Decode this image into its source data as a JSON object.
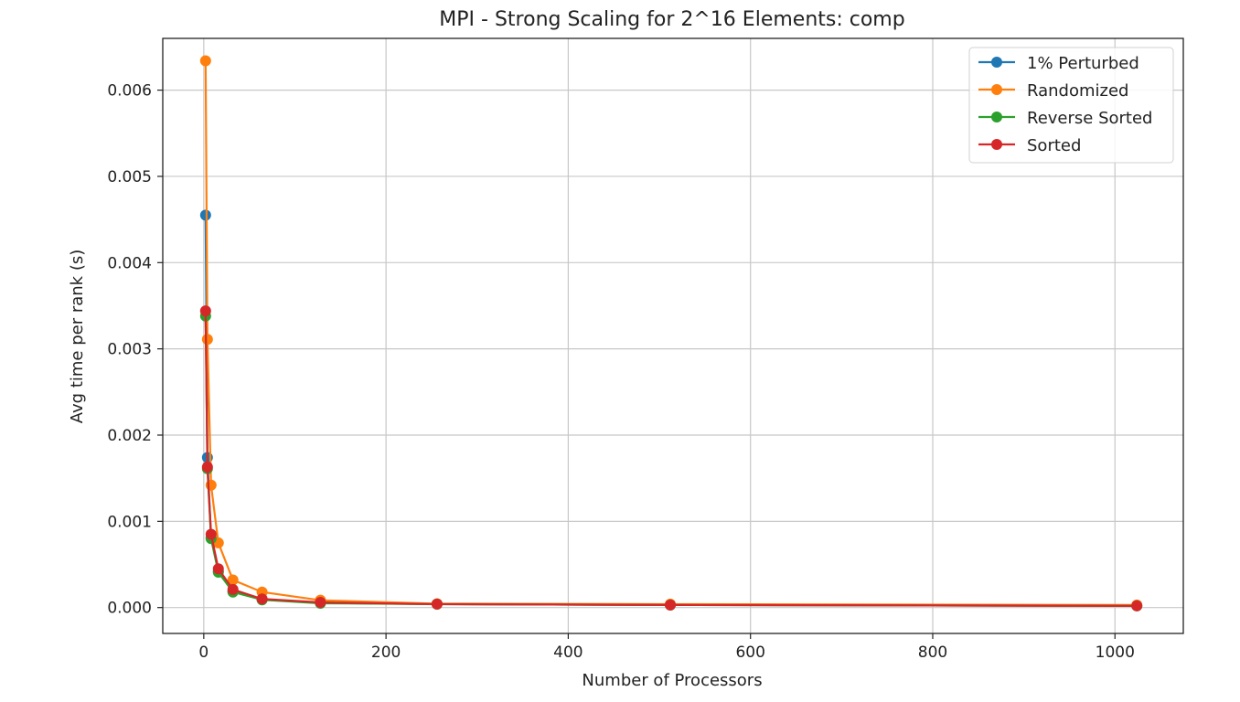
{
  "chart_data": {
    "type": "line",
    "title": "MPI - Strong Scaling for 2^16 Elements: comp",
    "xlabel": "Number of Processors",
    "ylabel": "Avg time per rank (s)",
    "xlim": [
      -45,
      1075
    ],
    "ylim": [
      -0.0003,
      0.0066
    ],
    "x_ticks": [
      0,
      200,
      400,
      600,
      800,
      1000
    ],
    "x_tick_labels": [
      "0",
      "200",
      "400",
      "600",
      "800",
      "1000"
    ],
    "y_ticks": [
      0.0,
      0.001,
      0.002,
      0.003,
      0.004,
      0.005,
      0.006
    ],
    "y_tick_labels": [
      "0.000",
      "0.001",
      "0.002",
      "0.003",
      "0.004",
      "0.005",
      "0.006"
    ],
    "grid": true,
    "legend_position": "top-right",
    "x": [
      2,
      4,
      8,
      16,
      32,
      64,
      128,
      256,
      512,
      1024
    ],
    "series": [
      {
        "name": "1% Perturbed",
        "color": "#1f77b4",
        "values": [
          0.00455,
          0.00174,
          0.00081,
          0.00042,
          0.00019,
          9.5e-05,
          5.5e-05,
          4e-05,
          3e-05,
          2e-05
        ]
      },
      {
        "name": "Randomized",
        "color": "#ff7f0e",
        "values": [
          0.00634,
          0.00311,
          0.00142,
          0.00075,
          0.00032,
          0.00018,
          8.5e-05,
          4.5e-05,
          4e-05,
          3e-05
        ]
      },
      {
        "name": "Reverse Sorted",
        "color": "#2ca02c",
        "values": [
          0.00338,
          0.00161,
          0.0008,
          0.00041,
          0.00018,
          9e-05,
          5e-05,
          4e-05,
          3e-05,
          2e-05
        ]
      },
      {
        "name": "Sorted",
        "color": "#d62728",
        "values": [
          0.00344,
          0.00163,
          0.00085,
          0.00045,
          0.00021,
          0.0001,
          6e-05,
          4e-05,
          3e-05,
          2e-05
        ]
      }
    ]
  }
}
